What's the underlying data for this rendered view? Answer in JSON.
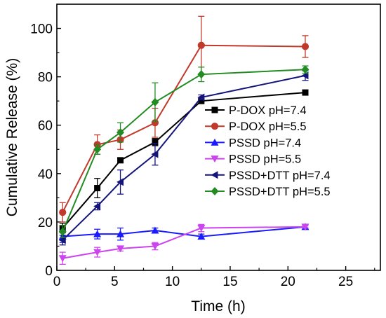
{
  "chart_data": {
    "type": "line",
    "xlabel": "Time (h)",
    "ylabel": "Cumulative Release (%)",
    "xlim": [
      0,
      28
    ],
    "ylim": [
      0,
      110
    ],
    "xticks": [
      0,
      5,
      10,
      15,
      20,
      25
    ],
    "yticks": [
      0,
      20,
      40,
      60,
      80,
      100
    ],
    "legend_position": "center-right",
    "grid": false,
    "x": [
      0.5,
      3.5,
      5.5,
      8.5,
      12.5,
      21.5
    ],
    "series": [
      {
        "name": "P-DOX pH=7.4",
        "color": "#000000",
        "marker": "square",
        "values": [
          17.5,
          34,
          45.5,
          53,
          70,
          73.5
        ],
        "errors": [
          2,
          4,
          1,
          1.5,
          0.5,
          1
        ]
      },
      {
        "name": "P-DOX pH=5.5",
        "color": "#c0392b",
        "marker": "circle",
        "values": [
          24,
          52,
          54,
          61,
          93,
          92.5
        ],
        "errors": [
          4,
          4,
          4,
          6,
          12,
          4.5
        ]
      },
      {
        "name": "PSSD pH=7.4",
        "color": "#1a1aff",
        "marker": "triangle-up",
        "values": [
          14,
          15,
          15,
          16.5,
          14,
          18
        ],
        "errors": [
          2.5,
          2,
          2.5,
          1,
          1,
          0.5
        ]
      },
      {
        "name": "PSSD pH=5.5",
        "color": "#cc44ee",
        "marker": "triangle-down",
        "values": [
          5,
          7.5,
          9,
          10,
          17.5,
          18
        ],
        "errors": [
          2.5,
          2,
          1,
          1.5,
          1.5,
          0.5
        ]
      },
      {
        "name": "PSSD+DTT pH=7.4",
        "color": "#14147a",
        "marker": "triangle-left",
        "values": [
          12.5,
          26.5,
          36.5,
          48,
          71.5,
          80.5
        ],
        "errors": [
          2,
          1.5,
          5,
          4.5,
          1,
          2
        ]
      },
      {
        "name": "PSSD+DTT pH=5.5",
        "color": "#228b22",
        "marker": "diamond",
        "values": [
          16,
          50,
          57,
          69.5,
          81,
          83
        ],
        "errors": [
          2.5,
          2,
          4,
          8,
          3,
          1.5
        ]
      }
    ]
  }
}
